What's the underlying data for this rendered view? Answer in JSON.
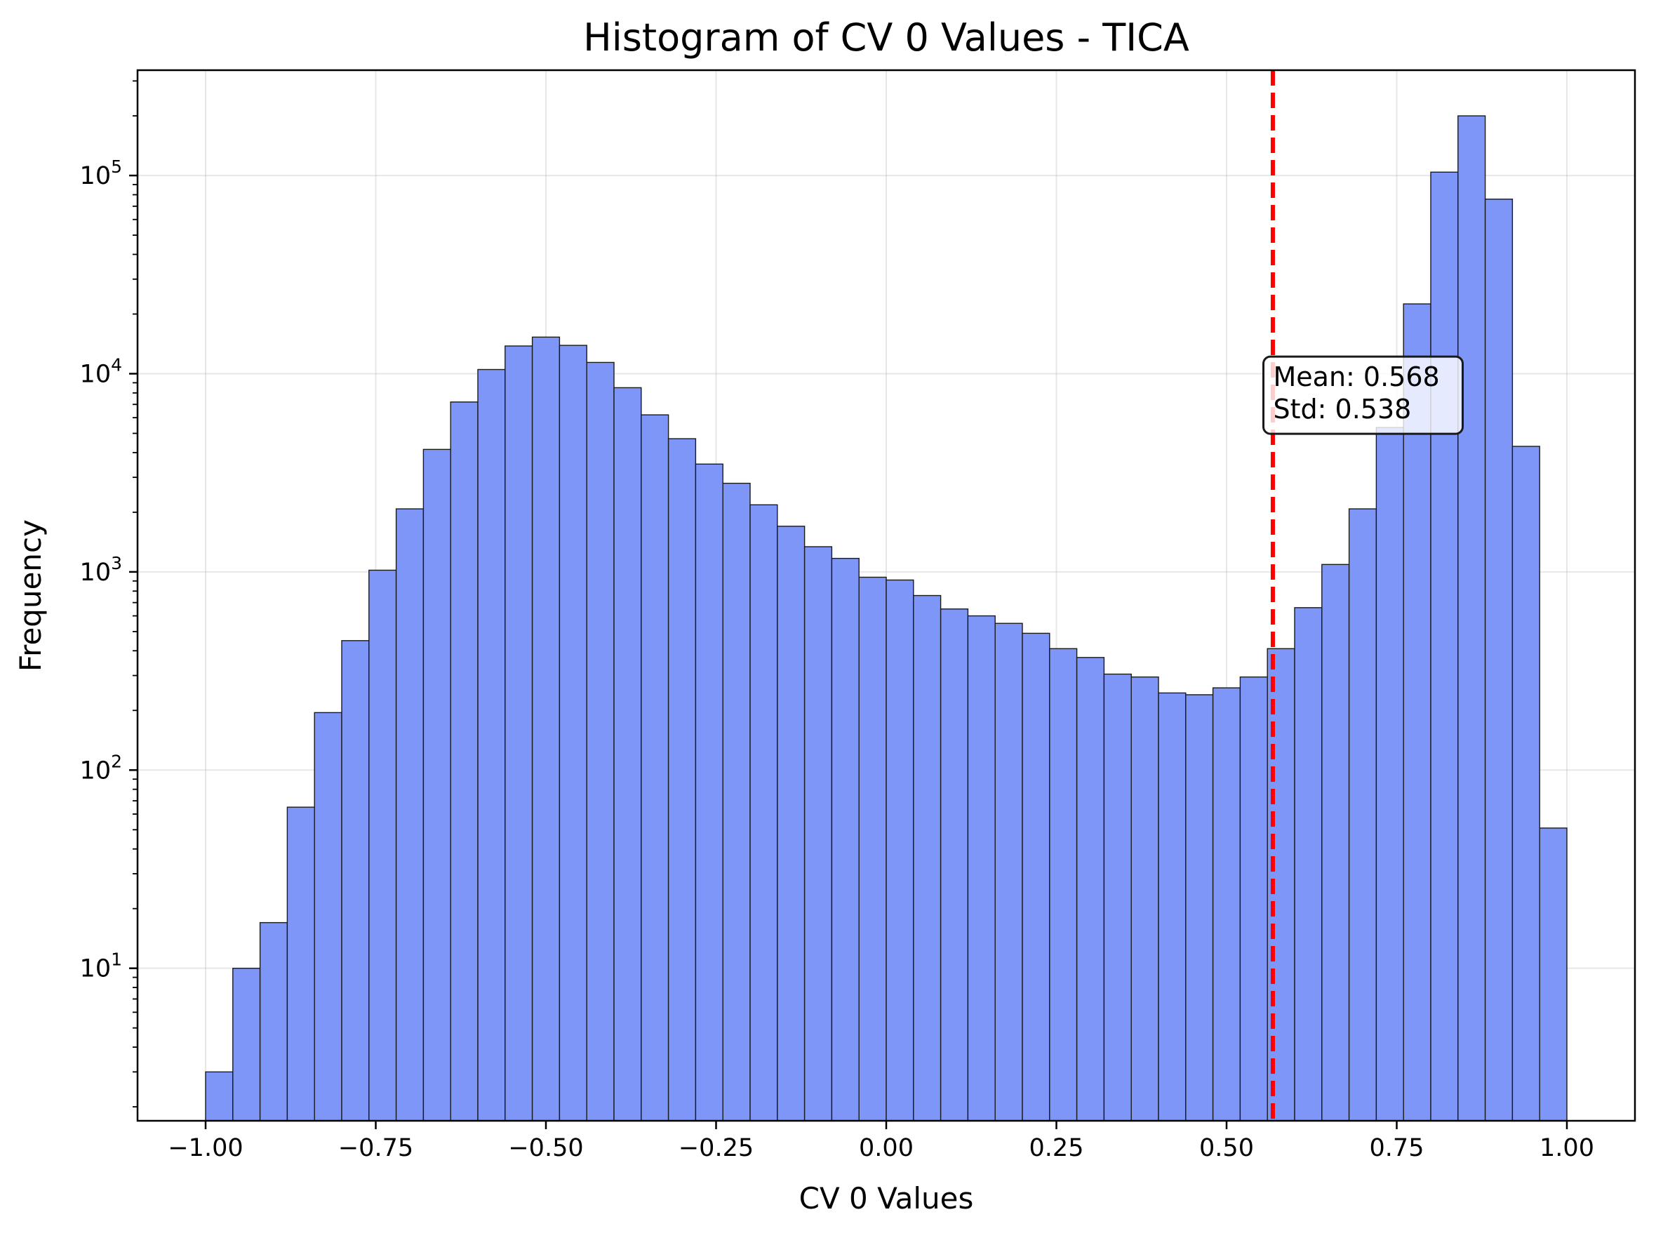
{
  "chart_data": {
    "type": "bar",
    "title": "Histogram of CV 0 Values - TICA",
    "xlabel": "CV 0 Values",
    "ylabel": "Frequency",
    "xlim": [
      -1.1,
      1.1
    ],
    "ylim": [
      1.7,
      340000
    ],
    "yscale": "log",
    "grid": true,
    "bar_color": "#7f96f9",
    "edge_color": "#1a1a1a",
    "bin_edges": [
      -1.0,
      -0.96,
      -0.92,
      -0.88,
      -0.84,
      -0.8,
      -0.76,
      -0.72,
      -0.68,
      -0.64,
      -0.6,
      -0.56,
      -0.52,
      -0.48,
      -0.44,
      -0.4,
      -0.36,
      -0.32,
      -0.28,
      -0.24,
      -0.2,
      -0.16,
      -0.12,
      -0.08,
      -0.04,
      0.0,
      0.04,
      0.08,
      0.12,
      0.16,
      0.2,
      0.24,
      0.28,
      0.32,
      0.36,
      0.4,
      0.44,
      0.48,
      0.52,
      0.56,
      0.6,
      0.64,
      0.68,
      0.72,
      0.76,
      0.8,
      0.84,
      0.88,
      0.92,
      0.96,
      1.0
    ],
    "values": [
      3,
      10,
      17,
      65,
      195,
      450,
      1020,
      2080,
      4150,
      7200,
      10500,
      13800,
      15300,
      13900,
      11400,
      8500,
      6200,
      4700,
      3500,
      2800,
      2180,
      1700,
      1340,
      1170,
      940,
      910,
      760,
      650,
      600,
      550,
      490,
      410,
      370,
      305,
      295,
      245,
      240,
      260,
      295,
      410,
      660,
      1090,
      2080,
      5350,
      22500,
      104000,
      200000,
      76000,
      4300,
      51
    ],
    "x_ticks": [
      -1.0,
      -0.75,
      -0.5,
      -0.25,
      0.0,
      0.25,
      0.5,
      0.75,
      1.0
    ],
    "x_tick_labels": [
      "−1.00",
      "−0.75",
      "−0.50",
      "−0.25",
      "0.00",
      "0.25",
      "0.50",
      "0.75",
      "1.00"
    ],
    "y_ticks": [
      10,
      100,
      1000,
      10000,
      100000
    ],
    "y_tick_labels": [
      {
        "base": "10",
        "exp": "1"
      },
      {
        "base": "10",
        "exp": "2"
      },
      {
        "base": "10",
        "exp": "3"
      },
      {
        "base": "10",
        "exp": "4"
      },
      {
        "base": "10",
        "exp": "5"
      }
    ],
    "mean_line": {
      "x": 0.568,
      "color": "#ff0000",
      "style": "dashed"
    },
    "annotation": {
      "lines": [
        "Mean: 0.568",
        "Std: 0.538"
      ],
      "anchor_x": 0.55,
      "anchor_y": 12000
    }
  }
}
